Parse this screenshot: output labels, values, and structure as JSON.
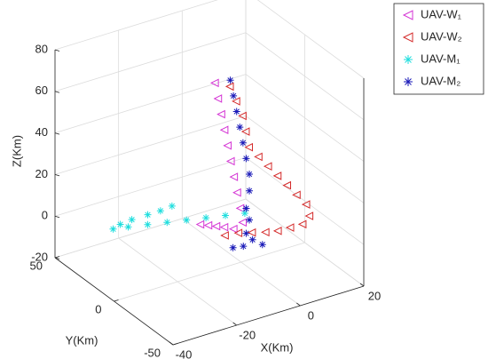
{
  "chart_data": {
    "type": "scatter3d",
    "xlabel": "X(Km)",
    "ylabel": "Y(Km)",
    "zlabel": "Z(Km)",
    "xlim": [
      -40,
      20
    ],
    "ylim": [
      -50,
      50
    ],
    "zlim": [
      -20,
      80
    ],
    "xticks": [
      -40,
      -20,
      0,
      20
    ],
    "yticks": [
      -50,
      0,
      50
    ],
    "zticks": [
      -20,
      0,
      20,
      40,
      60,
      80
    ],
    "grid": true,
    "legend": "outside-top-right",
    "series": [
      {
        "name": "UAV-W₁",
        "color": "#d433d4",
        "marker": "triangle-left",
        "x": [
          -12,
          -11,
          -10,
          -9,
          -8,
          -7,
          -6,
          -5,
          -4,
          -4,
          -8,
          -12,
          -16,
          -20,
          -24
        ],
        "y": [
          -10,
          -10,
          -10,
          -10,
          -10,
          -10,
          -10,
          -10,
          -10,
          -12,
          -15,
          -18,
          -22,
          -26,
          -30
        ],
        "z": [
          76,
          68,
          60,
          52,
          44,
          36,
          28,
          20,
          12,
          6,
          6,
          10,
          14,
          18,
          22
        ]
      },
      {
        "name": "UAV-W₂",
        "color": "#d42a2a",
        "marker": "triangle-left",
        "x": [
          -11,
          -9,
          -7,
          -6,
          -5,
          -2,
          1,
          4,
          7,
          10,
          13,
          14,
          10,
          5,
          0,
          -5,
          -10,
          -15,
          -20
        ],
        "y": [
          -20,
          -20,
          -20,
          -20,
          -20,
          -20,
          -20,
          -20,
          -20,
          -20,
          -20,
          -20,
          -25,
          -28,
          -31,
          -34,
          -36,
          -38,
          -40
        ],
        "z": [
          78,
          70,
          62,
          54,
          46,
          40,
          34,
          28,
          22,
          16,
          10,
          4,
          4,
          6,
          8,
          11,
          14,
          17,
          19
        ]
      },
      {
        "name": "UAV-M₁",
        "color": "#1fdede",
        "marker": "asterisk",
        "x": [
          3,
          -2,
          -7,
          -12,
          -17,
          -22,
          -27,
          -31,
          -28,
          -24,
          -19,
          -15,
          -11
        ],
        "y": [
          5,
          8,
          11,
          14,
          17,
          20,
          23,
          25,
          27,
          28,
          28,
          28,
          29
        ],
        "z": [
          0,
          0,
          0,
          0,
          0,
          0,
          0,
          0,
          0,
          0,
          0,
          0,
          0
        ]
      },
      {
        "name": "UAV-M₂",
        "color": "#1a1ab8",
        "marker": "asterisk",
        "x": [
          -9,
          -8,
          -7,
          -6,
          -5,
          -4,
          -3,
          -3,
          -4,
          -3,
          -4,
          -2,
          0,
          -6,
          -10
        ],
        "y": [
          -15,
          -15,
          -15,
          -15,
          -15,
          -15,
          -15,
          -15,
          -15,
          -15,
          -15,
          -15,
          -18,
          -18,
          -20
        ],
        "z": [
          78,
          70,
          62,
          54,
          46,
          38,
          30,
          22,
          14,
          8,
          2,
          -2,
          -4,
          -2,
          0
        ]
      }
    ]
  }
}
